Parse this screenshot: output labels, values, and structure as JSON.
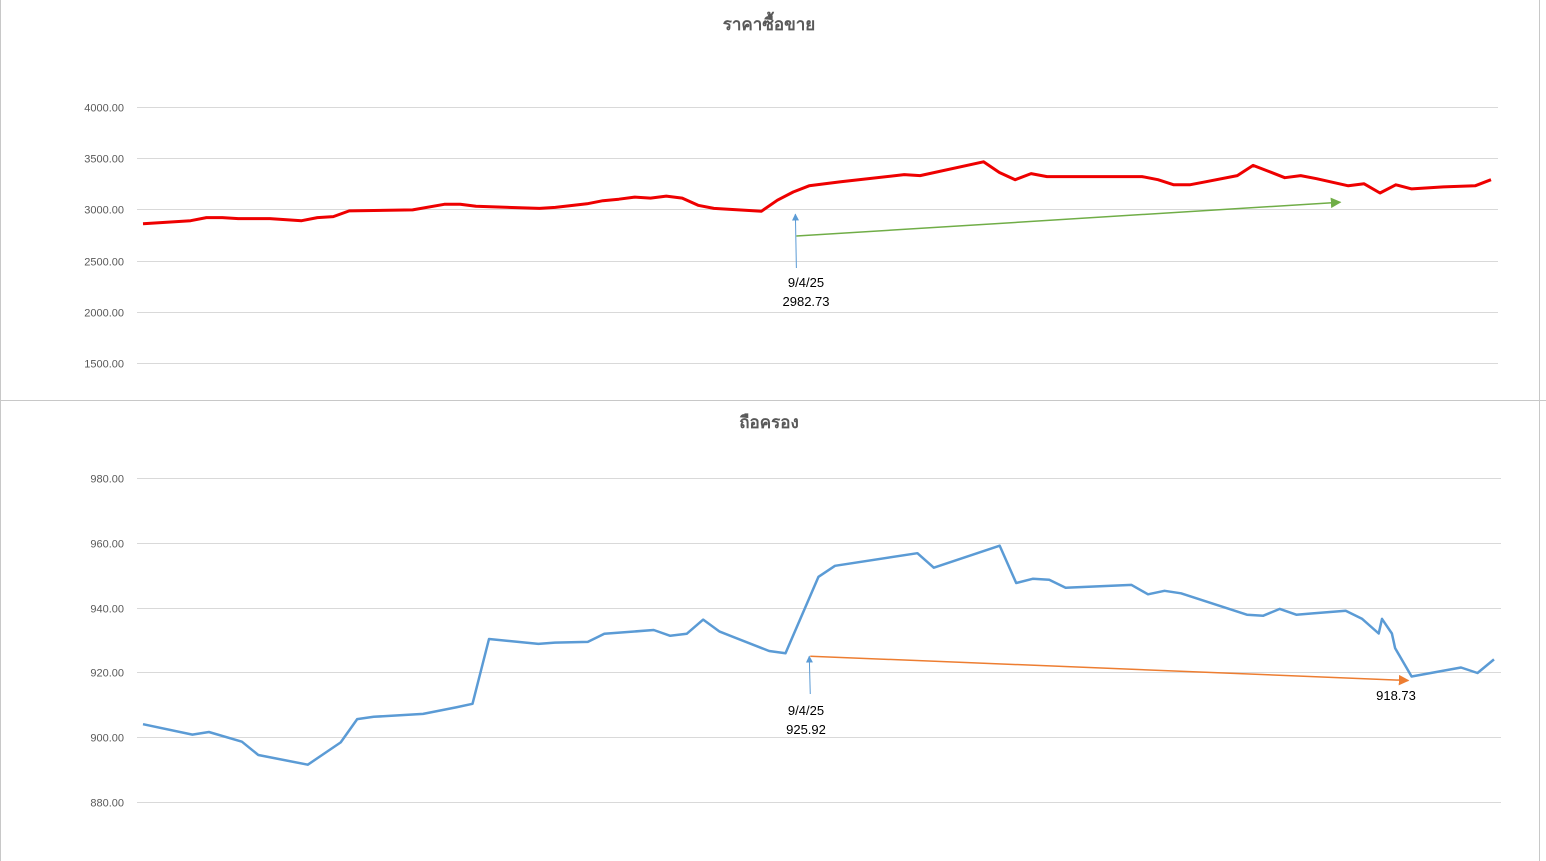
{
  "chart_data": [
    {
      "type": "line",
      "title": "ราคาซื้อขาย",
      "xlabel": "",
      "ylabel": "",
      "ylim": [
        1500,
        4000
      ],
      "yticks": [
        "4000.00",
        "3500.00",
        "3000.00",
        "2500.00",
        "2000.00",
        "1500.00"
      ],
      "ytick_values": [
        4000,
        3500,
        3000,
        2500,
        2000,
        1500
      ],
      "grid": true,
      "series": [
        {
          "color": "#ee0000",
          "x": [
            0,
            3,
            4,
            5,
            6,
            8,
            10,
            11,
            12,
            13,
            17,
            19,
            20,
            21,
            25,
            26,
            28,
            29,
            30,
            31,
            32,
            33,
            34,
            35,
            36,
            39,
            40,
            41,
            42,
            43,
            44,
            48,
            49,
            53,
            54,
            55,
            56,
            57,
            58,
            59,
            63,
            64,
            65,
            66,
            67,
            69,
            70,
            71,
            72,
            73,
            74,
            76,
            77,
            78,
            79,
            80,
            81,
            82,
            84,
            85
          ],
          "values": [
            2860,
            2890,
            2920,
            2920,
            2910,
            2910,
            2890,
            2920,
            2930,
            2985,
            2995,
            3050,
            3050,
            3030,
            3010,
            3020,
            3055,
            3085,
            3100,
            3120,
            3110,
            3130,
            3110,
            3040,
            3010,
            2982.73,
            3090,
            3170,
            3230,
            3250,
            3270,
            3340,
            3330,
            3465,
            3360,
            3290,
            3350,
            3320,
            3320,
            3320,
            3320,
            3290,
            3240,
            3240,
            3270,
            3330,
            3430,
            3370,
            3310,
            3330,
            3300,
            3230,
            3250,
            3160,
            3240,
            3200,
            3210,
            3220,
            3230,
            3290
          ]
        }
      ],
      "annotations": [
        {
          "label_date": "9/4/25",
          "label_value": "2982.73",
          "x": 41.2,
          "y": 2982.73,
          "color": "#5b9bd5"
        },
        {
          "trend_from": [
            41.2,
            2740
          ],
          "trend_to": [
            75.5,
            3070
          ],
          "color": "#70ad47"
        }
      ]
    },
    {
      "type": "line",
      "title": "ถือครอง",
      "xlabel": "",
      "ylabel": "",
      "ylim": [
        880,
        980
      ],
      "yticks": [
        "980.00",
        "960.00",
        "940.00",
        "920.00",
        "900.00",
        "880.00"
      ],
      "ytick_values": [
        980,
        960,
        940,
        920,
        900,
        880
      ],
      "grid": true,
      "series": [
        {
          "color": "#5b9bd5",
          "x": [
            0,
            3,
            4,
            6,
            7,
            10,
            12,
            13,
            14,
            17,
            19,
            20,
            21,
            24,
            25,
            27,
            28,
            31,
            32,
            33,
            34,
            35,
            38,
            39,
            41,
            42,
            47,
            48,
            52,
            53,
            54,
            55,
            56,
            60,
            61,
            62,
            63,
            67,
            68,
            69,
            70,
            71,
            73,
            74,
            75,
            75.2,
            75.8,
            76,
            77,
            80,
            81,
            82
          ],
          "values": [
            904,
            900.8,
            901.6,
            898.6,
            894.5,
            891.5,
            898.4,
            905.6,
            906.3,
            907.2,
            909.2,
            910.3,
            930.3,
            928.8,
            929.2,
            929.4,
            931.9,
            933.1,
            931.3,
            931.9,
            936.3,
            932.6,
            926.6,
            925.92,
            949.5,
            952.9,
            956.8,
            952.3,
            959.1,
            947.6,
            948.9,
            948.6,
            946.1,
            947,
            944.1,
            945.2,
            944.4,
            937.8,
            937.5,
            939.6,
            937.8,
            938.2,
            939,
            936.5,
            932,
            936.5,
            932,
            927.5,
            918.73,
            921.5,
            919.8,
            924
          ]
        }
      ],
      "annotations": [
        {
          "label_date": "9/4/25",
          "label_value": "925.92",
          "x": 40.5,
          "y": 925.92,
          "color": "#5b9bd5"
        },
        {
          "label_value": "918.73",
          "x": 77,
          "y": 918.73,
          "color": "#ed7d31"
        },
        {
          "trend_from": [
            40.5,
            925
          ],
          "trend_to": [
            76.8,
            917.5
          ],
          "color": "#ed7d31"
        }
      ]
    }
  ]
}
